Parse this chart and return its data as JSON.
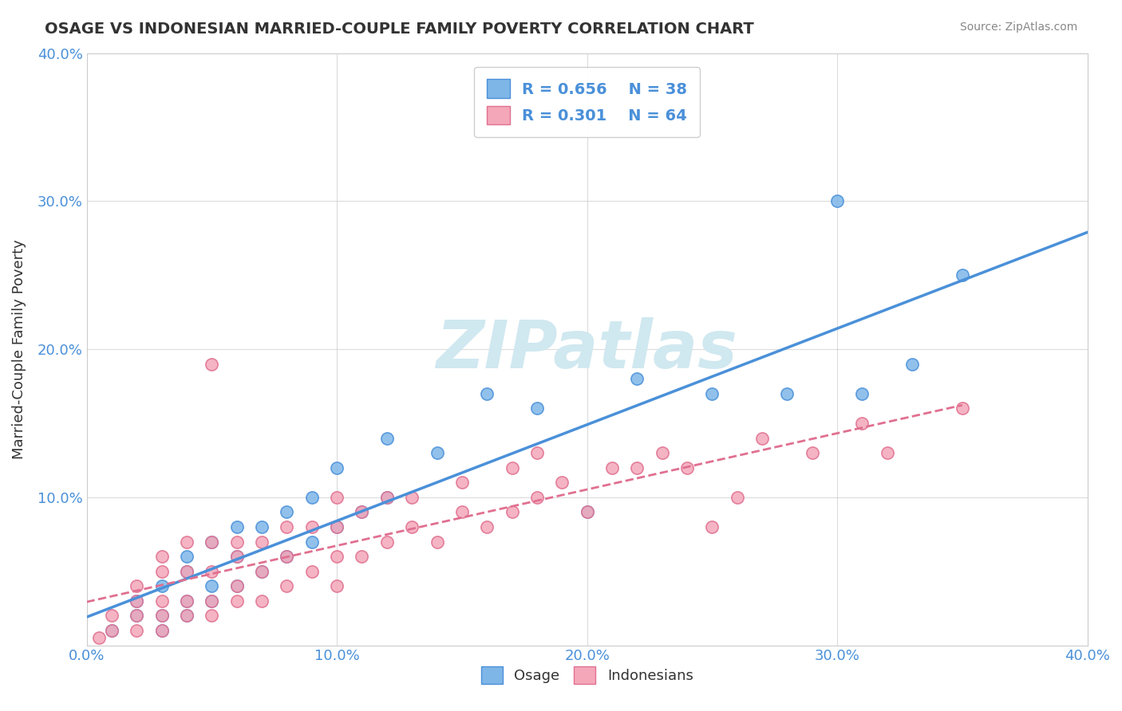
{
  "title": "OSAGE VS INDONESIAN MARRIED-COUPLE FAMILY POVERTY CORRELATION CHART",
  "source": "Source: ZipAtlas.com",
  "xlabel": "",
  "ylabel": "Married-Couple Family Poverty",
  "xlim": [
    0,
    0.4
  ],
  "ylim": [
    0,
    0.4
  ],
  "xtick_labels": [
    "0.0%",
    "10.0%",
    "20.0%",
    "30.0%",
    "40.0%"
  ],
  "ytick_labels": [
    "",
    "10.0%",
    "20.0%",
    "30.0%",
    "40.0%"
  ],
  "osage_R": 0.656,
  "osage_N": 38,
  "indonesian_R": 0.301,
  "indonesian_N": 64,
  "osage_color": "#7EB6E8",
  "indonesian_color": "#F4A7B9",
  "osage_line_color": "#4A90D9",
  "indonesian_line_color": "#F4A7B9",
  "background_color": "#FFFFFF",
  "watermark_text": "ZIPatlas",
  "watermark_color": "#D0E8F0",
  "legend_label_1": "Osage",
  "legend_label_2": "Indonesians",
  "osage_x": [
    0.01,
    0.02,
    0.02,
    0.03,
    0.03,
    0.03,
    0.04,
    0.04,
    0.04,
    0.04,
    0.05,
    0.05,
    0.05,
    0.06,
    0.06,
    0.06,
    0.07,
    0.07,
    0.08,
    0.08,
    0.09,
    0.09,
    0.1,
    0.1,
    0.11,
    0.12,
    0.12,
    0.14,
    0.16,
    0.18,
    0.2,
    0.22,
    0.25,
    0.28,
    0.3,
    0.31,
    0.33,
    0.35
  ],
  "osage_y": [
    0.01,
    0.02,
    0.03,
    0.01,
    0.02,
    0.04,
    0.02,
    0.03,
    0.05,
    0.06,
    0.03,
    0.04,
    0.07,
    0.04,
    0.06,
    0.08,
    0.05,
    0.08,
    0.06,
    0.09,
    0.07,
    0.1,
    0.08,
    0.12,
    0.09,
    0.1,
    0.14,
    0.13,
    0.17,
    0.16,
    0.09,
    0.18,
    0.17,
    0.17,
    0.3,
    0.17,
    0.19,
    0.25
  ],
  "indo_x": [
    0.005,
    0.01,
    0.01,
    0.02,
    0.02,
    0.02,
    0.02,
    0.03,
    0.03,
    0.03,
    0.03,
    0.03,
    0.04,
    0.04,
    0.04,
    0.04,
    0.05,
    0.05,
    0.05,
    0.05,
    0.05,
    0.06,
    0.06,
    0.06,
    0.06,
    0.07,
    0.07,
    0.07,
    0.08,
    0.08,
    0.08,
    0.09,
    0.09,
    0.1,
    0.1,
    0.1,
    0.1,
    0.11,
    0.11,
    0.12,
    0.12,
    0.13,
    0.13,
    0.14,
    0.15,
    0.15,
    0.16,
    0.17,
    0.17,
    0.18,
    0.18,
    0.19,
    0.2,
    0.21,
    0.22,
    0.23,
    0.24,
    0.25,
    0.26,
    0.27,
    0.29,
    0.31,
    0.32,
    0.35
  ],
  "indo_y": [
    0.005,
    0.01,
    0.02,
    0.01,
    0.02,
    0.03,
    0.04,
    0.01,
    0.02,
    0.03,
    0.05,
    0.06,
    0.02,
    0.03,
    0.05,
    0.07,
    0.02,
    0.03,
    0.05,
    0.07,
    0.19,
    0.03,
    0.04,
    0.06,
    0.07,
    0.03,
    0.05,
    0.07,
    0.04,
    0.06,
    0.08,
    0.05,
    0.08,
    0.04,
    0.06,
    0.08,
    0.1,
    0.06,
    0.09,
    0.07,
    0.1,
    0.08,
    0.1,
    0.07,
    0.09,
    0.11,
    0.08,
    0.09,
    0.12,
    0.1,
    0.13,
    0.11,
    0.09,
    0.12,
    0.12,
    0.13,
    0.12,
    0.08,
    0.1,
    0.14,
    0.13,
    0.15,
    0.13,
    0.16
  ]
}
